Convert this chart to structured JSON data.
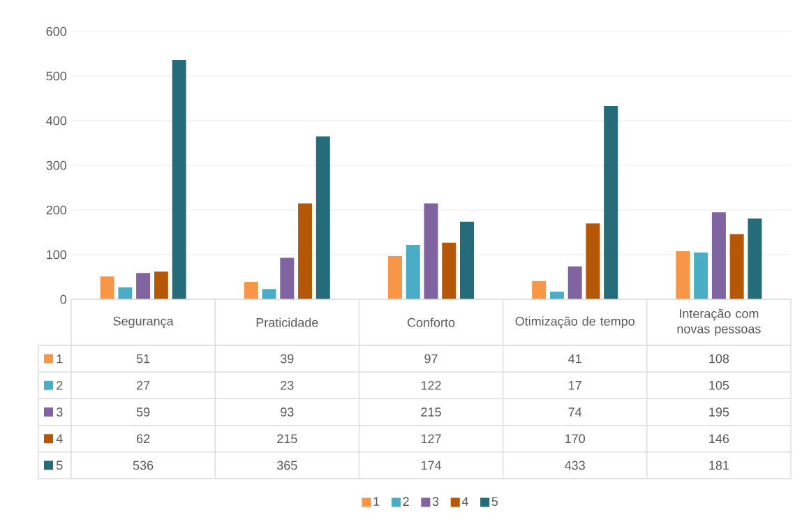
{
  "chart_data": {
    "type": "bar",
    "categories": [
      "Segurança",
      "Praticidade",
      "Conforto",
      "Otimização de tempo",
      "Interação com novas pessoas"
    ],
    "series": [
      {
        "name": "1",
        "color": "#f79646",
        "values": [
          51,
          39,
          97,
          41,
          108
        ]
      },
      {
        "name": "2",
        "color": "#4bacc6",
        "values": [
          27,
          23,
          122,
          17,
          105
        ]
      },
      {
        "name": "3",
        "color": "#8064a2",
        "values": [
          59,
          93,
          215,
          74,
          195
        ]
      },
      {
        "name": "4",
        "color": "#b65708",
        "values": [
          62,
          215,
          127,
          170,
          146
        ]
      },
      {
        "name": "5",
        "color": "#256c7a",
        "values": [
          536,
          365,
          174,
          433,
          181
        ]
      }
    ],
    "ylim": [
      0,
      600
    ],
    "yticks": [
      0,
      100,
      200,
      300,
      400,
      500,
      600
    ],
    "grid": "y",
    "legend": "bottom",
    "data_labels": true
  }
}
